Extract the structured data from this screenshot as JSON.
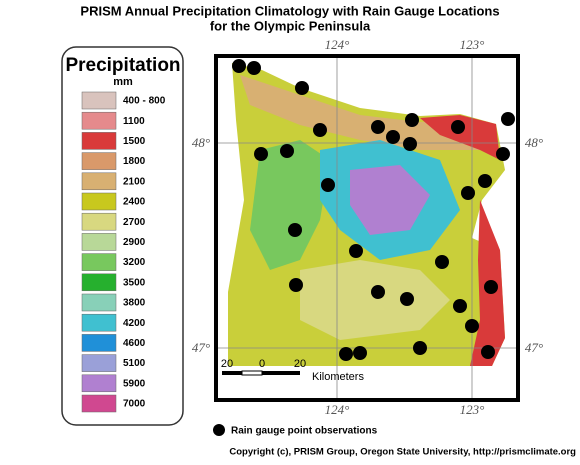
{
  "header": {
    "title": [
      "PRISM Annual Precipitation Climatology with Rain Gauge Locations",
      "for the Olympic Peninsula"
    ]
  },
  "legend": {
    "title": "Precipitation",
    "unit": "mm",
    "items": [
      {
        "label": "400 - 800",
        "color": "#d9c3bd"
      },
      {
        "label": "1100",
        "color": "#e58a8c"
      },
      {
        "label": "1500",
        "color": "#d93a3a"
      },
      {
        "label": "1800",
        "color": "#d9996a"
      },
      {
        "label": "2100",
        "color": "#d8b072"
      },
      {
        "label": "2400",
        "color": "#c8c81e"
      },
      {
        "label": "2700",
        "color": "#d8d880"
      },
      {
        "label": "2900",
        "color": "#b8d898"
      },
      {
        "label": "3200",
        "color": "#78c85e"
      },
      {
        "label": "3500",
        "color": "#26b02e"
      },
      {
        "label": "3800",
        "color": "#88d0b8"
      },
      {
        "label": "4200",
        "color": "#40c0d0"
      },
      {
        "label": "4600",
        "color": "#2090d8"
      },
      {
        "label": "5100",
        "color": "#9aa0d8"
      },
      {
        "label": "5900",
        "color": "#b080d0"
      },
      {
        "label": "7000",
        "color": "#d04890"
      }
    ]
  },
  "map": {
    "longitude_labels": [
      "124°",
      "123°"
    ],
    "latitude_labels": [
      "48°",
      "47°"
    ],
    "scale": {
      "labels": [
        "20",
        "0",
        "20"
      ],
      "unit": "Kilometers"
    }
  },
  "gauge_legend": "Rain gauge point observations",
  "copyright": "Copyright (c), PRISM Group, Oregon State University, http://prismclimate.org"
}
